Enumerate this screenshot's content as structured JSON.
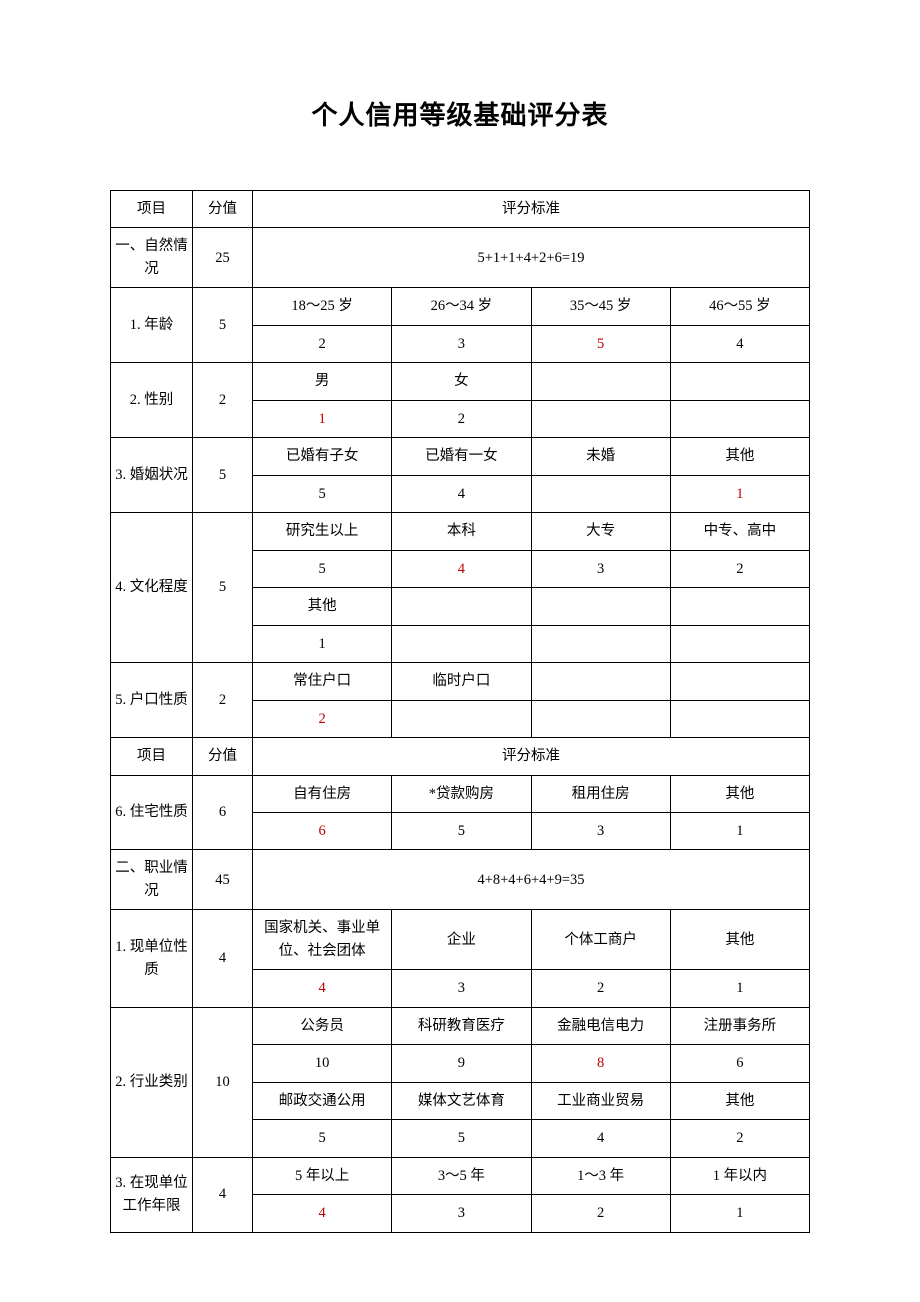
{
  "title": "个人信用等级基础评分表",
  "h": {
    "item": "项目",
    "score": "分值",
    "criteria": "评分标准"
  },
  "s1": {
    "label": "一、自然情况",
    "score": "25",
    "calc": "5+1+1+4+2+6=19"
  },
  "r1": {
    "label": "1. 年龄",
    "score": "5",
    "o": [
      "18～25 岁",
      "26～34 岁",
      "35～45 岁",
      "46～55 岁"
    ],
    "v": [
      "2",
      "3",
      "5",
      "4"
    ]
  },
  "r2": {
    "label": "2. 性别",
    "score": "2",
    "o": [
      "男",
      "女",
      "",
      ""
    ],
    "v": [
      "1",
      "2",
      "",
      ""
    ]
  },
  "r3": {
    "label": "3. 婚姻状况",
    "score": "5",
    "o": [
      "已婚有子女",
      "已婚有一女",
      "未婚",
      "其他"
    ],
    "v": [
      "5",
      "4",
      "",
      "1"
    ]
  },
  "r4": {
    "label": "4. 文化程度",
    "score": "5",
    "o1": [
      "研究生以上",
      "本科",
      "大专",
      "中专、高中"
    ],
    "v1": [
      "5",
      "4",
      "3",
      "2"
    ],
    "o2": [
      "其他",
      "",
      "",
      ""
    ],
    "v2": [
      "1",
      "",
      "",
      ""
    ]
  },
  "r5": {
    "label": "5. 户口性质",
    "score": "2",
    "o": [
      "常住户口",
      "临时户口",
      "",
      ""
    ],
    "v": [
      "2",
      "",
      "",
      ""
    ]
  },
  "r6": {
    "label": "6. 住宅性质",
    "score": "6",
    "o": [
      "自有住房",
      "*贷款购房",
      "租用住房",
      "其他"
    ],
    "v": [
      "6",
      "5",
      "3",
      "1"
    ]
  },
  "s2": {
    "label": "二、职业情况",
    "score": "45",
    "calc": "4+8+4+6+4+9=35"
  },
  "r7": {
    "label": "1. 现单位性质",
    "score": "4",
    "o": [
      "国家机关、事业单位、社会团体",
      "企业",
      "个体工商户",
      "其他"
    ],
    "v": [
      "4",
      "3",
      "2",
      "1"
    ]
  },
  "r8": {
    "label": "2. 行业类别",
    "score": "10",
    "o1": [
      "公务员",
      "科研教育医疗",
      "金融电信电力",
      "注册事务所"
    ],
    "v1": [
      "10",
      "9",
      "8",
      "6"
    ],
    "o2": [
      "邮政交通公用",
      "媒体文艺体育",
      "工业商业贸易",
      "其他"
    ],
    "v2": [
      "5",
      "5",
      "4",
      "2"
    ]
  },
  "r9": {
    "label": "3. 在现单位工作年限",
    "score": "4",
    "o": [
      "5 年以上",
      "3～5 年",
      "1～3 年",
      "1 年以内"
    ],
    "v": [
      "4",
      "3",
      "2",
      "1"
    ]
  }
}
